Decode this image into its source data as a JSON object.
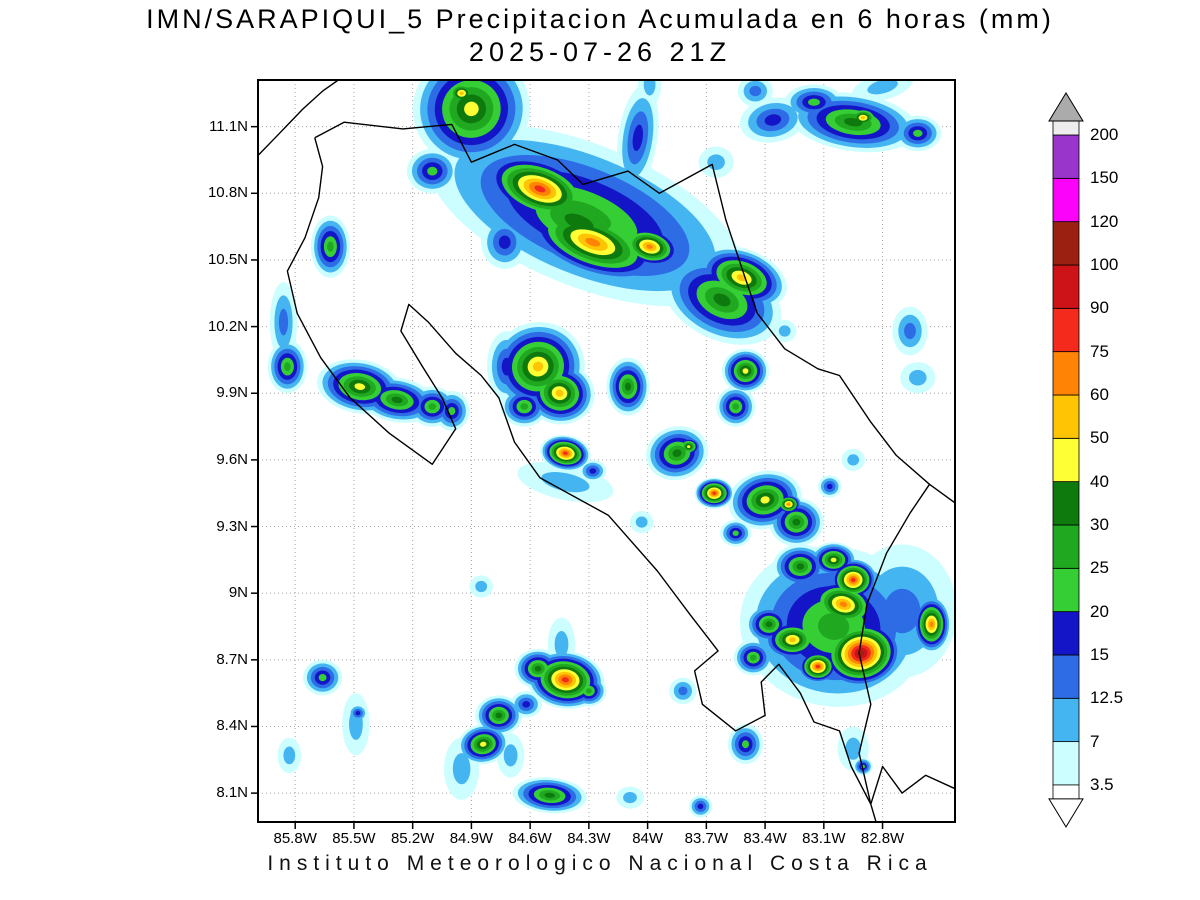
{
  "title": {
    "line1": "IMN/SARAPIQUI_5 Precipitacion Acumulada en 6 horas (mm)",
    "line2": "2025-07-26 21Z"
  },
  "footer": "Instituto Meteorologico Nacional Costa Rica",
  "axes": {
    "lat_ticks": [
      {
        "label": "11.1N",
        "value": 11.1
      },
      {
        "label": "10.8N",
        "value": 10.8
      },
      {
        "label": "10.5N",
        "value": 10.5
      },
      {
        "label": "10.2N",
        "value": 10.2
      },
      {
        "label": "9.9N",
        "value": 9.9
      },
      {
        "label": "9.6N",
        "value": 9.6
      },
      {
        "label": "9.3N",
        "value": 9.3
      },
      {
        "label": "9N",
        "value": 9.0
      },
      {
        "label": "8.7N",
        "value": 8.7
      },
      {
        "label": "8.4N",
        "value": 8.4
      },
      {
        "label": "8.1N",
        "value": 8.1
      }
    ],
    "lon_ticks": [
      {
        "label": "85.8W",
        "value": 85.8
      },
      {
        "label": "85.5W",
        "value": 85.5
      },
      {
        "label": "85.2W",
        "value": 85.2
      },
      {
        "label": "84.9W",
        "value": 84.9
      },
      {
        "label": "84.6W",
        "value": 84.6
      },
      {
        "label": "84.3W",
        "value": 84.3
      },
      {
        "label": "84W",
        "value": 84.0
      },
      {
        "label": "83.7W",
        "value": 83.7
      },
      {
        "label": "83.4W",
        "value": 83.4
      },
      {
        "label": "83.1W",
        "value": 83.1
      },
      {
        "label": "82.8W",
        "value": 82.8
      }
    ]
  },
  "colorbar": {
    "labels_top_to_bottom": [
      "200",
      "150",
      "120",
      "100",
      "90",
      "75",
      "60",
      "50",
      "40",
      "30",
      "25",
      "20",
      "15",
      "12.5",
      "7",
      "3.5"
    ],
    "top_arrow_color": "#ababab",
    "under_arrow_color": "#ffffff"
  },
  "chart_data": {
    "type": "heatmap",
    "title": "Precipitacion Acumulada en 6 horas",
    "units": "mm",
    "model": "IMN/SARAPIQUI_5",
    "valid_time": "2025-07-26 21Z",
    "extent": {
      "lon_west": 85.99,
      "lon_east": 82.43,
      "lat_north": 11.31,
      "lat_south": 7.97
    },
    "levels": [
      {
        "value": 3.5,
        "color": "#cdfeff"
      },
      {
        "value": 7,
        "color": "#45b5f2"
      },
      {
        "value": 12.5,
        "color": "#2e6ce6"
      },
      {
        "value": 15,
        "color": "#1515c8"
      },
      {
        "value": 20,
        "color": "#35cf35"
      },
      {
        "value": 25,
        "color": "#21a821"
      },
      {
        "value": 30,
        "color": "#0e7a0e"
      },
      {
        "value": 40,
        "color": "#ffff35"
      },
      {
        "value": 50,
        "color": "#ffc403"
      },
      {
        "value": 60,
        "color": "#ff8405"
      },
      {
        "value": 75,
        "color": "#f42a1c"
      },
      {
        "value": 90,
        "color": "#cd1318"
      },
      {
        "value": 100,
        "color": "#9c2012"
      },
      {
        "value": 120,
        "color": "#fb02fb"
      },
      {
        "value": 150,
        "color": "#9a35cc"
      },
      {
        "value": 200,
        "color": "#ededed"
      }
    ],
    "cell_format": [
      "lon_w",
      "lat_n",
      "rx_deg",
      "ry_deg",
      "rot_deg",
      "peak_mm"
    ],
    "cells": [
      [
        84.9,
        11.18,
        0.3,
        0.26,
        -20,
        40
      ],
      [
        84.95,
        11.25,
        0.1,
        0.07,
        0,
        50
      ],
      [
        85.1,
        10.9,
        0.13,
        0.1,
        0,
        20
      ],
      [
        84.32,
        10.7,
        0.85,
        0.32,
        22,
        25
      ],
      [
        84.35,
        10.67,
        0.55,
        0.22,
        22,
        30
      ],
      [
        84.55,
        10.82,
        0.32,
        0.15,
        20,
        75
      ],
      [
        84.28,
        10.58,
        0.4,
        0.16,
        20,
        60
      ],
      [
        83.99,
        10.56,
        0.18,
        0.1,
        15,
        60
      ],
      [
        83.52,
        10.42,
        0.24,
        0.13,
        20,
        50
      ],
      [
        83.62,
        10.32,
        0.32,
        0.18,
        25,
        30
      ],
      [
        82.95,
        11.12,
        0.33,
        0.13,
        8,
        30
      ],
      [
        82.9,
        11.14,
        0.1,
        0.06,
        0,
        50
      ],
      [
        83.15,
        11.21,
        0.15,
        0.08,
        0,
        20
      ],
      [
        82.62,
        11.07,
        0.12,
        0.08,
        0,
        20
      ],
      [
        84.05,
        11.05,
        0.1,
        0.24,
        8,
        15
      ],
      [
        83.65,
        10.94,
        0.09,
        0.07,
        0,
        7
      ],
      [
        83.36,
        11.13,
        0.17,
        0.1,
        -10,
        15
      ],
      [
        83.45,
        11.26,
        0.09,
        0.07,
        0,
        12.5
      ],
      [
        82.8,
        11.28,
        0.16,
        0.06,
        -15,
        7
      ],
      [
        83.99,
        11.29,
        0.06,
        0.1,
        0,
        7
      ],
      [
        84.73,
        10.58,
        0.12,
        0.12,
        0,
        15
      ],
      [
        85.62,
        10.56,
        0.1,
        0.14,
        0,
        25
      ],
      [
        85.86,
        10.22,
        0.07,
        0.18,
        0,
        12.5
      ],
      [
        85.84,
        10.02,
        0.1,
        0.12,
        0,
        25
      ],
      [
        85.47,
        9.93,
        0.22,
        0.12,
        10,
        40
      ],
      [
        85.28,
        9.87,
        0.2,
        0.1,
        10,
        30
      ],
      [
        85.1,
        9.84,
        0.12,
        0.09,
        0,
        25
      ],
      [
        85.0,
        9.82,
        0.09,
        0.09,
        0,
        20
      ],
      [
        84.56,
        10.02,
        0.24,
        0.2,
        -15,
        50
      ],
      [
        84.45,
        9.9,
        0.18,
        0.14,
        10,
        50
      ],
      [
        84.63,
        9.84,
        0.12,
        0.09,
        0,
        25
      ],
      [
        84.72,
        10.02,
        0.1,
        0.16,
        0,
        15
      ],
      [
        84.42,
        9.63,
        0.13,
        0.08,
        10,
        75
      ],
      [
        84.42,
        9.5,
        0.25,
        0.08,
        12,
        7
      ],
      [
        84.28,
        9.55,
        0.07,
        0.05,
        0,
        15
      ],
      [
        84.1,
        9.93,
        0.11,
        0.13,
        0,
        30
      ],
      [
        83.85,
        9.63,
        0.16,
        0.12,
        -15,
        30
      ],
      [
        83.79,
        9.66,
        0.07,
        0.05,
        0,
        40
      ],
      [
        83.66,
        9.45,
        0.1,
        0.07,
        0,
        75
      ],
      [
        83.5,
        10.0,
        0.12,
        0.1,
        0,
        40
      ],
      [
        83.55,
        9.84,
        0.1,
        0.09,
        0,
        25
      ],
      [
        83.3,
        10.18,
        0.06,
        0.05,
        0,
        7
      ],
      [
        82.66,
        10.18,
        0.09,
        0.11,
        0,
        12.5
      ],
      [
        82.62,
        9.97,
        0.09,
        0.07,
        0,
        7
      ],
      [
        82.95,
        9.6,
        0.06,
        0.05,
        0,
        7
      ],
      [
        84.85,
        9.03,
        0.06,
        0.05,
        0,
        7
      ],
      [
        84.03,
        9.32,
        0.06,
        0.05,
        0,
        7
      ],
      [
        83.4,
        9.42,
        0.19,
        0.13,
        -12,
        40
      ],
      [
        83.24,
        9.32,
        0.14,
        0.11,
        0,
        30
      ],
      [
        83.28,
        9.4,
        0.07,
        0.05,
        0,
        60
      ],
      [
        83.07,
        9.48,
        0.06,
        0.05,
        0,
        15
      ],
      [
        83.55,
        9.27,
        0.08,
        0.06,
        0,
        20
      ],
      [
        83.05,
        8.85,
        0.48,
        0.36,
        10,
        25
      ],
      [
        82.7,
        8.92,
        0.28,
        0.3,
        0,
        12.5
      ],
      [
        82.95,
        9.06,
        0.13,
        0.1,
        0,
        75
      ],
      [
        83.0,
        8.95,
        0.2,
        0.12,
        15,
        60
      ],
      [
        83.05,
        9.15,
        0.12,
        0.08,
        0,
        40
      ],
      [
        83.22,
        9.12,
        0.14,
        0.1,
        0,
        30
      ],
      [
        82.91,
        8.73,
        0.22,
        0.16,
        -10,
        100
      ],
      [
        83.13,
        8.67,
        0.11,
        0.08,
        0,
        75
      ],
      [
        83.26,
        8.79,
        0.16,
        0.1,
        0,
        50
      ],
      [
        83.38,
        8.86,
        0.12,
        0.09,
        0,
        30
      ],
      [
        83.46,
        8.71,
        0.1,
        0.08,
        0,
        25
      ],
      [
        82.55,
        8.86,
        0.1,
        0.13,
        0,
        60
      ],
      [
        84.42,
        8.61,
        0.2,
        0.13,
        8,
        75
      ],
      [
        84.56,
        8.66,
        0.12,
        0.09,
        0,
        30
      ],
      [
        84.3,
        8.56,
        0.09,
        0.07,
        0,
        25
      ],
      [
        84.44,
        8.77,
        0.07,
        0.12,
        0,
        7
      ],
      [
        84.62,
        8.5,
        0.08,
        0.06,
        0,
        15
      ],
      [
        83.82,
        8.56,
        0.07,
        0.06,
        0,
        12.5
      ],
      [
        84.84,
        8.32,
        0.13,
        0.09,
        -10,
        40
      ],
      [
        84.76,
        8.45,
        0.12,
        0.09,
        0,
        30
      ],
      [
        84.5,
        8.09,
        0.19,
        0.08,
        5,
        30
      ],
      [
        84.95,
        8.21,
        0.09,
        0.14,
        0,
        7
      ],
      [
        84.7,
        8.27,
        0.07,
        0.1,
        0,
        7
      ],
      [
        85.66,
        8.62,
        0.1,
        0.08,
        0,
        20
      ],
      [
        85.49,
        8.41,
        0.07,
        0.14,
        0,
        7
      ],
      [
        85.48,
        8.46,
        0.05,
        0.04,
        0,
        15
      ],
      [
        85.83,
        8.27,
        0.06,
        0.08,
        0,
        7
      ],
      [
        83.5,
        8.32,
        0.09,
        0.09,
        0,
        20
      ],
      [
        83.73,
        8.04,
        0.06,
        0.05,
        0,
        15
      ],
      [
        84.09,
        8.08,
        0.07,
        0.05,
        0,
        7
      ],
      [
        82.95,
        8.3,
        0.08,
        0.1,
        0,
        7
      ],
      [
        82.9,
        8.22,
        0.05,
        0.04,
        0,
        20
      ]
    ],
    "coastlines": [
      [
        [
          85.7,
          11.05
        ],
        [
          85.55,
          11.12
        ],
        [
          85.25,
          11.09
        ],
        [
          85.0,
          11.11
        ],
        [
          84.9,
          10.94
        ],
        [
          84.68,
          11.02
        ],
        [
          84.46,
          10.95
        ],
        [
          84.33,
          10.84
        ],
        [
          84.1,
          10.9
        ],
        [
          83.94,
          10.8
        ],
        [
          83.67,
          10.93
        ],
        [
          83.6,
          10.68
        ],
        [
          83.51,
          10.44
        ],
        [
          83.44,
          10.26
        ],
        [
          83.3,
          10.1
        ],
        [
          83.13,
          10.01
        ],
        [
          83.02,
          9.98
        ],
        [
          82.86,
          9.77
        ],
        [
          82.73,
          9.62
        ],
        [
          82.56,
          9.49
        ],
        [
          82.42,
          9.4
        ]
      ],
      [
        [
          82.56,
          9.49
        ],
        [
          82.66,
          9.36
        ],
        [
          82.78,
          9.18
        ],
        [
          82.88,
          8.95
        ],
        [
          82.92,
          8.73
        ],
        [
          82.86,
          8.5
        ],
        [
          82.92,
          8.28
        ],
        [
          82.86,
          8.05
        ],
        [
          82.83,
          7.96
        ]
      ],
      [
        [
          82.86,
          8.05
        ],
        [
          82.96,
          8.22
        ],
        [
          83.02,
          8.38
        ],
        [
          83.15,
          8.42
        ],
        [
          83.22,
          8.55
        ],
        [
          83.33,
          8.68
        ],
        [
          83.42,
          8.6
        ],
        [
          83.4,
          8.45
        ],
        [
          83.55,
          8.38
        ],
        [
          83.72,
          8.5
        ],
        [
          83.76,
          8.65
        ],
        [
          83.64,
          8.74
        ],
        [
          83.78,
          8.9
        ],
        [
          83.95,
          9.1
        ],
        [
          84.2,
          9.35
        ],
        [
          84.55,
          9.52
        ],
        [
          84.68,
          9.68
        ],
        [
          84.76,
          9.88
        ],
        [
          84.85,
          9.98
        ],
        [
          84.98,
          10.08
        ],
        [
          85.12,
          10.22
        ],
        [
          85.22,
          10.3
        ],
        [
          85.26,
          10.18
        ],
        [
          85.15,
          10.02
        ],
        [
          85.05,
          9.88
        ],
        [
          84.98,
          9.74
        ],
        [
          85.1,
          9.58
        ],
        [
          85.32,
          9.72
        ],
        [
          85.52,
          9.88
        ],
        [
          85.67,
          10.06
        ],
        [
          85.79,
          10.26
        ],
        [
          85.84,
          10.45
        ],
        [
          85.75,
          10.6
        ],
        [
          85.68,
          10.78
        ],
        [
          85.66,
          10.92
        ],
        [
          85.7,
          11.05
        ]
      ],
      [
        [
          82.43,
          8.12
        ],
        [
          82.58,
          8.18
        ],
        [
          82.7,
          8.1
        ],
        [
          82.8,
          8.22
        ],
        [
          82.86,
          8.05
        ]
      ],
      [
        [
          85.99,
          10.97
        ],
        [
          85.88,
          11.07
        ],
        [
          85.76,
          11.18
        ],
        [
          85.66,
          11.26
        ],
        [
          85.58,
          11.31
        ]
      ]
    ]
  }
}
